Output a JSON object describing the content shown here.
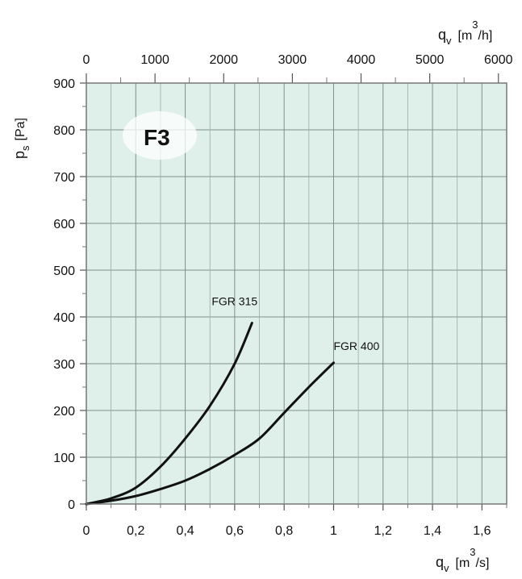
{
  "chart_data": {
    "type": "line",
    "badge": "F3",
    "y_axis": {
      "symbol": "p",
      "subscript": "s",
      "unit": "[Pa]",
      "ylim": [
        0,
        900
      ],
      "ticks": [
        "0",
        "100",
        "200",
        "300",
        "400",
        "500",
        "600",
        "700",
        "800",
        "900"
      ]
    },
    "x_axis_bottom": {
      "symbol": "q",
      "subscript": "v",
      "unit_prefix": "[m",
      "unit_sup": "3",
      "unit_suffix": "/s]",
      "xlim": [
        0,
        1.7
      ],
      "ticks": [
        "0",
        "0,2",
        "0,4",
        "0,6",
        "0,8",
        "1",
        "1,2",
        "1,4",
        "1,6"
      ]
    },
    "x_axis_top": {
      "symbol": "q",
      "subscript": "v",
      "unit_prefix": "[m",
      "unit_sup": "3",
      "unit_suffix": "/h]",
      "xlim": [
        0,
        6120
      ],
      "ticks": [
        "0",
        "1000",
        "2000",
        "3000",
        "4000",
        "5000",
        "6000"
      ]
    },
    "grid": true,
    "background": "#dff0ea",
    "series": [
      {
        "name": "FGR 315",
        "x": [
          0,
          0.1,
          0.2,
          0.3,
          0.4,
          0.5,
          0.6,
          0.67
        ],
        "y": [
          0,
          12,
          35,
          80,
          140,
          210,
          300,
          387
        ]
      },
      {
        "name": "FGR 400",
        "x": [
          0,
          0.1,
          0.2,
          0.3,
          0.4,
          0.5,
          0.6,
          0.7,
          0.8,
          0.9,
          1.0
        ],
        "y": [
          0,
          7,
          17,
          32,
          50,
          75,
          105,
          140,
          195,
          250,
          302
        ]
      }
    ]
  }
}
